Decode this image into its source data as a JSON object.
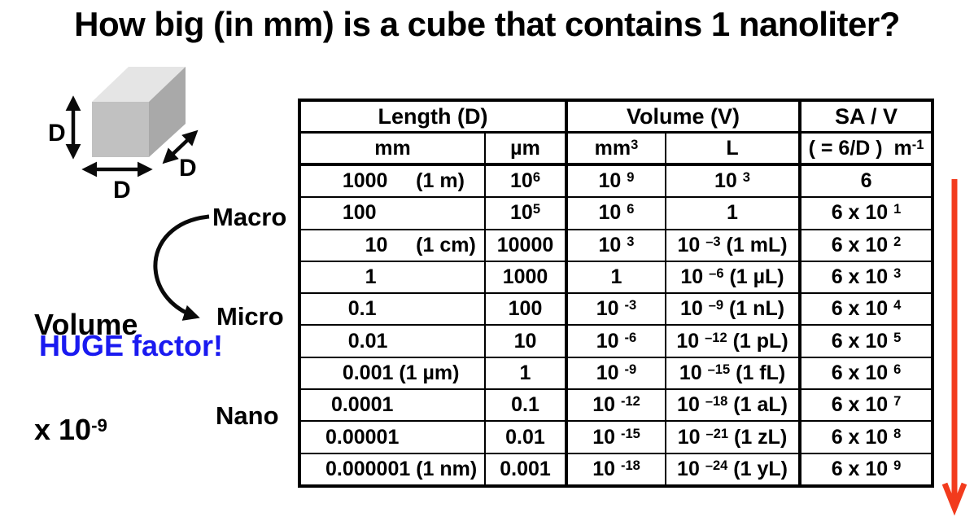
{
  "title": "How big (in mm) is a cube that contains 1 nanoliter?",
  "colors": {
    "accent_blue": "#1a1af0",
    "arrow_red": "#f23b1d",
    "cube_top": "#e5e5e5",
    "cube_front": "#c1c1c1",
    "cube_side": "#a9a9a9"
  },
  "cube": {
    "dim_label": "D"
  },
  "annotations": {
    "volume_line1": "Volume",
    "volume_line2": "x 10^(-9)",
    "huge_note": "HUGE factor!",
    "scale_labels": [
      "Macro",
      "Micro",
      "Nano"
    ]
  },
  "table": {
    "group_headers": [
      {
        "label": "Length (D)",
        "span": 2
      },
      {
        "label": "Volume (V)",
        "span": 2
      },
      {
        "label": "SA / V",
        "span": 1
      }
    ],
    "unit_headers": [
      "mm",
      "µm",
      "mm^(3)",
      "L",
      "( = 6/D )  m^(-1)"
    ],
    "rows": [
      [
        "   1000     (1 m)",
        "10^(6)",
        "10 ^(9)",
        "10 ^(3)",
        "6"
      ],
      [
        "   100",
        "10^(5)",
        "10 ^(6)",
        "1",
        "6 x 10 ^(1)"
      ],
      [
        "       10     (1 cm)",
        "10000",
        "10 ^(3)",
        "10 ^(–3) (1 mL)",
        "6 x 10 ^(2)"
      ],
      [
        "       1",
        "1000",
        "1",
        "10 ^(–6) (1 µL)",
        "6 x 10 ^(3)"
      ],
      [
        "    0.1",
        "100",
        "10 ^(-3)",
        "10 ^(–9) (1 nL)",
        "6 x 10 ^(4)"
      ],
      [
        "    0.01",
        "10",
        "10 ^(-6)",
        "10 ^(–12) (1 pL)",
        "6 x 10 ^(5)"
      ],
      [
        "   0.001 (1 µm)",
        "1",
        "10 ^(-9)",
        "10 ^(–15) (1 fL)",
        "6 x 10 ^(6)"
      ],
      [
        " 0.0001",
        "0.1",
        "10 ^(-12)",
        "10 ^(–18) (1 aL)",
        "6 x 10 ^(7)"
      ],
      [
        "0.00001",
        "0.01",
        "10 ^(-15)",
        "10 ^(–21) (1 zL)",
        "6 x 10 ^(8)"
      ],
      [
        "0.000001 (1 nm)",
        "0.001",
        "10 ^(-18)",
        "10 ^(–24) (1 yL)",
        "6 x 10 ^(9)"
      ]
    ]
  }
}
